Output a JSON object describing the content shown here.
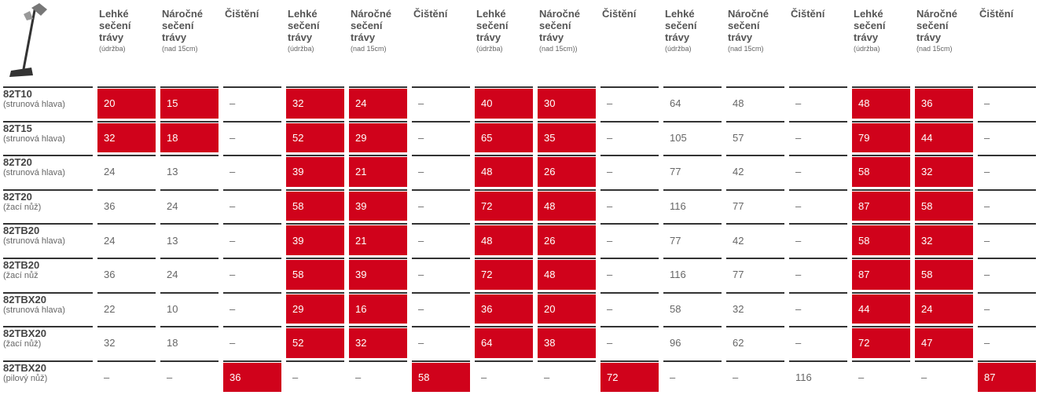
{
  "header": {
    "columns": [
      {
        "title": "Lehké sečení trávy",
        "note": "(údržba)"
      },
      {
        "title": "Náročné sečení trávy",
        "note": "(nad 15cm)"
      },
      {
        "title": "Čištění",
        "note": null
      },
      {
        "title": "Lehké sečení trávy",
        "note": "(údržba)"
      },
      {
        "title": "Náročné sečení trávy",
        "note": "(nad 15cm)"
      },
      {
        "title": "Čištění",
        "note": null
      },
      {
        "title": "Lehké sečení trávy",
        "note": "(údržba)"
      },
      {
        "title": "Náročné sečení trávy",
        "note": "(nad 15cm))"
      },
      {
        "title": "Čištění",
        "note": null
      },
      {
        "title": "Lehké sečení trávy",
        "note": "(údržba)"
      },
      {
        "title": "Náročné sečení trávy",
        "note": "(nad 15cm)"
      },
      {
        "title": "Čištění",
        "note": null
      },
      {
        "title": "Lehké sečení trávy",
        "note": "(údržba)"
      },
      {
        "title": "Náročné sečení trávy",
        "note": "(nad 15cm)"
      },
      {
        "title": "Čištění",
        "note": null
      }
    ]
  },
  "table": {
    "highlight_color": "#d0021b",
    "rows": [
      {
        "name": "82T10",
        "sub": "(strunová hlava)",
        "cells": [
          "20",
          "15",
          "–",
          "32",
          "24",
          "–",
          "40",
          "30",
          "–",
          "64",
          "48",
          "–",
          "48",
          "36",
          "–"
        ],
        "highlight": [
          0,
          1,
          3,
          4,
          6,
          7,
          12,
          13
        ]
      },
      {
        "name": "82T15",
        "sub": "(strunová hlava)",
        "cells": [
          "32",
          "18",
          "–",
          "52",
          "29",
          "–",
          "65",
          "35",
          "–",
          "105",
          "57",
          "–",
          "79",
          "44",
          "–"
        ],
        "highlight": [
          0,
          1,
          3,
          4,
          6,
          7,
          12,
          13
        ]
      },
      {
        "name": "82T20",
        "sub": "(strunová hlava)",
        "cells": [
          "24",
          "13",
          "–",
          "39",
          "21",
          "–",
          "48",
          "26",
          "–",
          "77",
          "42",
          "–",
          "58",
          "32",
          "–"
        ],
        "highlight": [
          3,
          4,
          6,
          7,
          12,
          13
        ]
      },
      {
        "name": "82T20",
        "sub": "(žací nůž)",
        "cells": [
          "36",
          "24",
          "–",
          "58",
          "39",
          "–",
          "72",
          "48",
          "–",
          "116",
          "77",
          "–",
          "87",
          "58",
          "–"
        ],
        "highlight": [
          3,
          4,
          6,
          7,
          12,
          13
        ]
      },
      {
        "name": "82TB20",
        "sub": "(strunová hlava)",
        "cells": [
          "24",
          "13",
          "–",
          "39",
          "21",
          "–",
          "48",
          "26",
          "–",
          "77",
          "42",
          "–",
          "58",
          "32",
          "–"
        ],
        "highlight": [
          3,
          4,
          6,
          7,
          12,
          13
        ]
      },
      {
        "name": "82TB20",
        "sub": "(žací nůž",
        "cells": [
          "36",
          "24",
          "–",
          "58",
          "39",
          "–",
          "72",
          "48",
          "–",
          "116",
          "77",
          "–",
          "87",
          "58",
          "–"
        ],
        "highlight": [
          3,
          4,
          6,
          7,
          12,
          13
        ]
      },
      {
        "name": "82TBX20",
        "sub": "(strunová hlava)",
        "cells": [
          "22",
          "10",
          "–",
          "29",
          "16",
          "–",
          "36",
          "20",
          "–",
          "58",
          "32",
          "–",
          "44",
          "24",
          "–"
        ],
        "highlight": [
          3,
          4,
          6,
          7,
          12,
          13
        ]
      },
      {
        "name": "82TBX20",
        "sub": "(žací nůž)",
        "cells": [
          "32",
          "18",
          "–",
          "52",
          "32",
          "–",
          "64",
          "38",
          "–",
          "96",
          "62",
          "–",
          "72",
          "47",
          "–"
        ],
        "highlight": [
          3,
          4,
          6,
          7,
          12,
          13
        ]
      },
      {
        "name": "82TBX20",
        "sub": "(pilový nůž)",
        "cells": [
          "–",
          "–",
          "36",
          "–",
          "–",
          "58",
          "–",
          "–",
          "72",
          "–",
          "–",
          "116",
          "–",
          "–",
          "87"
        ],
        "highlight": [
          2,
          5,
          8,
          14
        ]
      }
    ]
  }
}
